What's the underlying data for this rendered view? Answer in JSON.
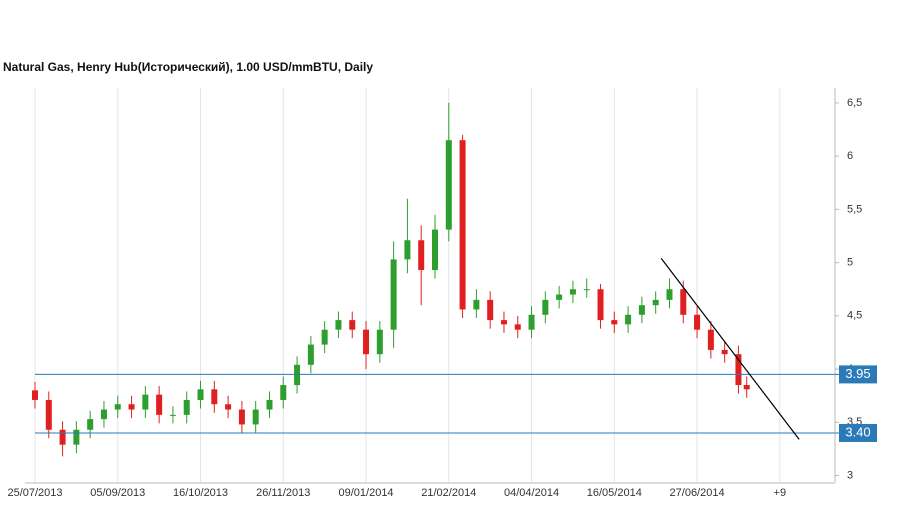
{
  "chart_data": {
    "type": "candlestick",
    "title": "Natural Gas, Henry Hub(Исторический), 1.00 USD/mmBTU, Daily",
    "x": [
      0,
      5,
      10,
      15,
      20,
      25,
      30,
      35,
      40,
      45,
      50,
      55,
      60,
      65,
      70,
      75,
      80,
      85,
      90,
      95,
      100,
      105,
      110,
      115,
      120,
      125,
      130,
      135,
      140,
      145,
      150,
      155,
      160,
      165,
      170,
      175,
      180,
      185,
      190,
      195,
      200,
      205,
      210,
      215,
      220,
      225,
      230,
      235,
      240,
      245,
      250,
      255,
      258
    ],
    "open": [
      3.8,
      3.71,
      3.43,
      3.29,
      3.43,
      3.53,
      3.62,
      3.67,
      3.62,
      3.76,
      3.57,
      3.57,
      3.71,
      3.81,
      3.67,
      3.62,
      3.48,
      3.62,
      3.71,
      3.85,
      4.04,
      4.23,
      4.37,
      4.46,
      4.37,
      4.14,
      4.37,
      5.03,
      5.21,
      4.93,
      5.31,
      6.15,
      4.56,
      4.65,
      4.46,
      4.42,
      4.37,
      4.51,
      4.65,
      4.7,
      4.75,
      4.75,
      4.46,
      4.42,
      4.51,
      4.6,
      4.65,
      4.75,
      4.51,
      4.37,
      4.18,
      4.14,
      3.85
    ],
    "high": [
      3.88,
      3.79,
      3.51,
      3.51,
      3.61,
      3.7,
      3.75,
      3.75,
      3.84,
      3.84,
      3.65,
      3.79,
      3.89,
      3.89,
      3.75,
      3.7,
      3.7,
      3.79,
      3.93,
      4.12,
      4.31,
      4.45,
      4.54,
      4.54,
      4.45,
      4.45,
      5.2,
      5.6,
      5.35,
      5.45,
      6.5,
      6.2,
      4.75,
      4.73,
      4.54,
      4.5,
      4.59,
      4.73,
      4.78,
      4.83,
      4.85,
      4.8,
      4.54,
      4.59,
      4.68,
      4.73,
      4.85,
      4.83,
      4.59,
      4.45,
      4.26,
      4.22,
      3.93
    ],
    "low": [
      3.63,
      3.35,
      3.18,
      3.21,
      3.35,
      3.45,
      3.54,
      3.54,
      3.54,
      3.49,
      3.49,
      3.49,
      3.63,
      3.59,
      3.54,
      3.4,
      3.4,
      3.54,
      3.63,
      3.77,
      3.96,
      4.15,
      4.29,
      4.29,
      4.0,
      4.06,
      4.2,
      4.9,
      4.6,
      4.85,
      5.2,
      4.48,
      4.48,
      4.38,
      4.34,
      4.29,
      4.29,
      4.43,
      4.57,
      4.62,
      4.67,
      4.38,
      4.34,
      4.34,
      4.43,
      4.52,
      4.57,
      4.43,
      4.29,
      4.1,
      4.06,
      3.77,
      3.73
    ],
    "close": [
      3.71,
      3.43,
      3.29,
      3.43,
      3.53,
      3.62,
      3.67,
      3.62,
      3.76,
      3.57,
      3.57,
      3.71,
      3.81,
      3.67,
      3.62,
      3.48,
      3.62,
      3.71,
      3.85,
      4.04,
      4.23,
      4.37,
      4.46,
      4.37,
      4.14,
      4.37,
      5.03,
      5.21,
      4.93,
      5.31,
      6.15,
      4.56,
      4.65,
      4.46,
      4.42,
      4.37,
      4.51,
      4.65,
      4.7,
      4.75,
      4.75,
      4.46,
      4.42,
      4.51,
      4.6,
      4.65,
      4.75,
      4.51,
      4.37,
      4.18,
      4.14,
      3.85,
      3.81
    ],
    "up_color": "#2e9e2e",
    "down_color": "#e02020",
    "xlim": [
      0,
      290
    ],
    "xticks": [
      {
        "value": 0,
        "label": "25/07/2013"
      },
      {
        "value": 30,
        "label": "05/09/2013"
      },
      {
        "value": 60,
        "label": "16/10/2013"
      },
      {
        "value": 90,
        "label": "26/11/2013"
      },
      {
        "value": 120,
        "label": "09/01/2014"
      },
      {
        "value": 150,
        "label": "21/02/2014"
      },
      {
        "value": 180,
        "label": "04/04/2014"
      },
      {
        "value": 210,
        "label": "16/05/2014"
      },
      {
        "value": 240,
        "label": "27/06/2014"
      },
      {
        "value": 270,
        "label": "+9"
      }
    ],
    "ylim": [
      2.93,
      6.64
    ],
    "yticks": [
      3,
      {
        "value": 3.5,
        "label": "3,5"
      },
      4,
      {
        "value": 4.5,
        "label": "4,5"
      },
      5,
      {
        "value": 5.5,
        "label": "5,5"
      },
      6,
      {
        "value": 6.5,
        "label": "6,5"
      }
    ],
    "grid": true,
    "levels": [
      {
        "value": 3.95,
        "label": "3.95"
      },
      {
        "value": 3.4,
        "label": "3.40"
      }
    ],
    "level_color": "#2a7ab8",
    "trendline": {
      "x": [
        227,
        277
      ],
      "y": [
        5.04,
        3.34
      ],
      "color": "#000000"
    }
  }
}
